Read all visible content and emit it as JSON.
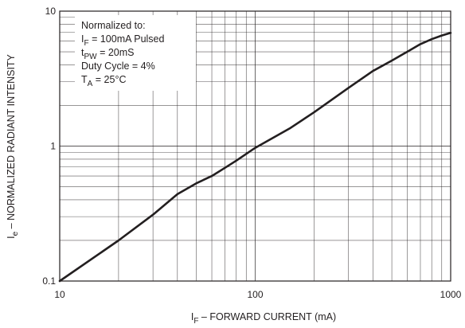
{
  "chart_data": {
    "type": "line",
    "title": "",
    "xlabel": "I_F – FORWARD CURRENT (mA)",
    "xlabel_main": "I",
    "xlabel_sub": "F",
    "xlabel_rest": " – FORWARD CURRENT (mA)",
    "ylabel": "I_e – NORMALIZED RADIANT INTENSITY",
    "ylabel_main": "I",
    "ylabel_sub": "e",
    "ylabel_rest": " – NORMALIZED RADIANT INTENSITY",
    "x_scale": "log",
    "y_scale": "log",
    "xlim": [
      10,
      1000
    ],
    "ylim": [
      0.1,
      10
    ],
    "grid": true,
    "x_ticks": [
      {
        "value": 10,
        "label": "10"
      },
      {
        "value": 100,
        "label": "100"
      },
      {
        "value": 1000,
        "label": "1000"
      }
    ],
    "y_ticks": [
      {
        "value": 0.1,
        "label": "0.1"
      },
      {
        "value": 1,
        "label": "1"
      },
      {
        "value": 10,
        "label": "10"
      }
    ],
    "annotation": {
      "position": "top-left",
      "lines": [
        {
          "main": "Normalized to:",
          "sub": "",
          "rest": ""
        },
        {
          "main": "I",
          "sub": "F",
          "rest": " = 100mA Pulsed"
        },
        {
          "main": "t",
          "sub": "PW",
          "rest": " = 20mS"
        },
        {
          "main": "Duty Cycle = 4%",
          "sub": "",
          "rest": ""
        },
        {
          "main": "T",
          "sub": "A",
          "rest": " = 25°C"
        }
      ]
    },
    "series": [
      {
        "x": [
          10,
          15,
          20,
          30,
          40,
          50,
          60,
          70,
          80,
          100,
          150,
          200,
          300,
          400,
          500,
          600,
          700,
          800,
          900,
          1000
        ],
        "values": [
          0.1,
          0.15,
          0.2,
          0.31,
          0.44,
          0.53,
          0.6,
          0.69,
          0.78,
          0.97,
          1.35,
          1.78,
          2.7,
          3.6,
          4.3,
          5.0,
          5.7,
          6.2,
          6.6,
          6.9
        ]
      }
    ],
    "colors": {
      "line": "#231f20",
      "grid": "#231f20",
      "background": "#ffffff"
    }
  }
}
